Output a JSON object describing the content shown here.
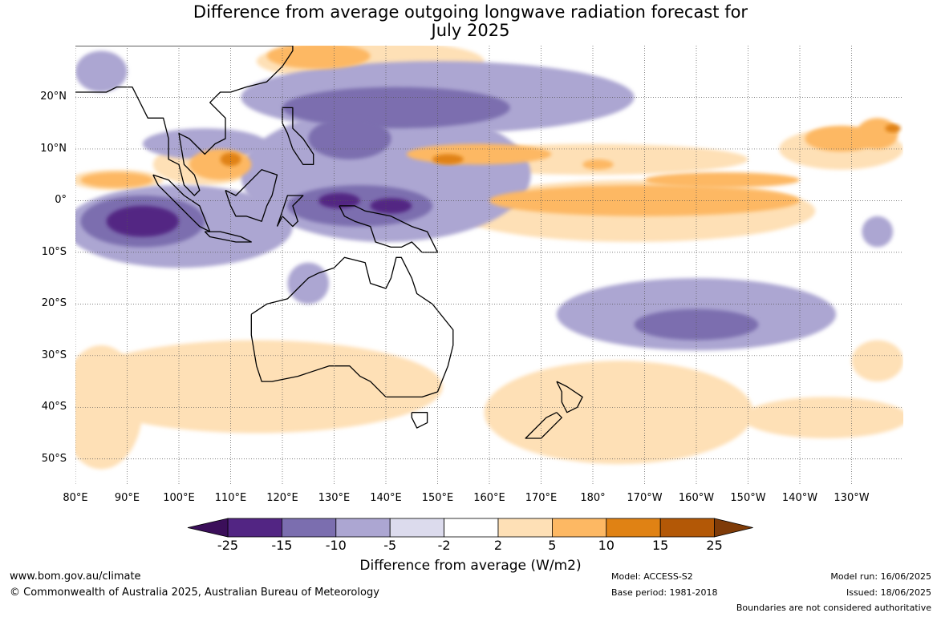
{
  "title_line1": "Difference from average outgoing longwave radiation forecast for",
  "title_line2": "July 2025",
  "lat_labels": [
    "20°N",
    "10°N",
    "0°",
    "10°S",
    "20°S",
    "30°S",
    "40°S",
    "50°S"
  ],
  "lon_labels": [
    "80°E",
    "90°E",
    "100°E",
    "110°E",
    "120°E",
    "130°E",
    "140°E",
    "150°E",
    "160°E",
    "170°E",
    "180°",
    "170°W",
    "160°W",
    "150°W",
    "140°W",
    "130°W"
  ],
  "colorbar": {
    "ticks": [
      "-25",
      "-15",
      "-10",
      "-5",
      "-2",
      "2",
      "5",
      "10",
      "15",
      "25"
    ],
    "colors": [
      "#3b0f5a",
      "#522583",
      "#7b6eaf",
      "#aca6d2",
      "#dcdbed",
      "#ffffff",
      "#fee0b6",
      "#fdb863",
      "#e08214",
      "#b35806",
      "#7f3b08"
    ],
    "label": "Difference from average (W/m2)"
  },
  "footer": {
    "url": "www.bom.gov.au/climate",
    "copyright": "© Commonwealth of Australia 2025, Australian Bureau of Meteorology",
    "model": "Model: ACCESS-S2",
    "base_period": "Base period: 1981-2018",
    "model_run": "Model run: 16/06/2025",
    "issued": "Issued: 18/06/2025",
    "boundaries": "Boundaries are not considered authoritative"
  },
  "map": {
    "lon_range": [
      80,
      240
    ],
    "lat_range": [
      -55,
      30
    ],
    "regions": [
      {
        "level": -15,
        "lon": 93,
        "lat": -4,
        "rx": 7,
        "ry": 3
      },
      {
        "level": -15,
        "lon": 131,
        "lat": 0,
        "rx": 4,
        "ry": 1.5
      },
      {
        "level": -15,
        "lon": 141,
        "lat": -1,
        "rx": 4,
        "ry": 1.5
      },
      {
        "level": -10,
        "lon": 93,
        "lat": -4,
        "rx": 12,
        "ry": 5
      },
      {
        "level": -10,
        "lon": 135,
        "lat": -1,
        "rx": 14,
        "ry": 4
      },
      {
        "level": -10,
        "lon": 142,
        "lat": 18,
        "rx": 22,
        "ry": 4
      },
      {
        "level": -10,
        "lon": 133,
        "lat": 12,
        "rx": 8,
        "ry": 4
      },
      {
        "level": -10,
        "lon": 200,
        "lat": -24,
        "rx": 12,
        "ry": 3
      },
      {
        "level": -5,
        "lon": 100,
        "lat": -5,
        "rx": 22,
        "ry": 8
      },
      {
        "level": -5,
        "lon": 140,
        "lat": 5,
        "rx": 28,
        "ry": 13
      },
      {
        "level": -5,
        "lon": 150,
        "lat": 20,
        "rx": 38,
        "ry": 7
      },
      {
        "level": -5,
        "lon": 105,
        "lat": 11,
        "rx": 12,
        "ry": 3
      },
      {
        "level": -5,
        "lon": 200,
        "lat": -22,
        "rx": 27,
        "ry": 7
      },
      {
        "level": -5,
        "lon": 85,
        "lat": 25,
        "rx": 5,
        "ry": 4
      },
      {
        "level": -5,
        "lon": 125,
        "lat": -16,
        "rx": 4,
        "ry": 4
      },
      {
        "level": -5,
        "lon": 235,
        "lat": -6,
        "rx": 3,
        "ry": 3
      },
      {
        "level": 2,
        "lon": 188,
        "lat": -2,
        "rx": 35,
        "ry": 6
      },
      {
        "level": 2,
        "lon": 180,
        "lat": 8,
        "rx": 30,
        "ry": 3
      },
      {
        "level": 2,
        "lon": 228,
        "lat": 10,
        "rx": 12,
        "ry": 4
      },
      {
        "level": 2,
        "lon": 105,
        "lat": 7,
        "rx": 10,
        "ry": 4
      },
      {
        "level": 2,
        "lon": 88,
        "lat": 4,
        "rx": 9,
        "ry": 2
      },
      {
        "level": 2,
        "lon": 137,
        "lat": 27,
        "rx": 22,
        "ry": 4
      },
      {
        "level": 2,
        "lon": 115,
        "lat": -36,
        "rx": 36,
        "ry": 9
      },
      {
        "level": 2,
        "lon": 185,
        "lat": -41,
        "rx": 26,
        "ry": 10
      },
      {
        "level": 2,
        "lon": 225,
        "lat": -42,
        "rx": 16,
        "ry": 4
      },
      {
        "level": 2,
        "lon": 235,
        "lat": -31,
        "rx": 5,
        "ry": 4
      },
      {
        "level": 2,
        "lon": 85,
        "lat": -40,
        "rx": 8,
        "ry": 12
      },
      {
        "level": 5,
        "lon": 190,
        "lat": 0,
        "rx": 30,
        "ry": 3
      },
      {
        "level": 5,
        "lon": 205,
        "lat": 4,
        "rx": 15,
        "ry": 1.5
      },
      {
        "level": 5,
        "lon": 158,
        "lat": 9,
        "rx": 14,
        "ry": 2
      },
      {
        "level": 5,
        "lon": 108,
        "lat": 7,
        "rx": 6,
        "ry": 3
      },
      {
        "level": 5,
        "lon": 88,
        "lat": 4,
        "rx": 7,
        "ry": 1.5
      },
      {
        "level": 5,
        "lon": 228,
        "lat": 12,
        "rx": 7,
        "ry": 2.5
      },
      {
        "level": 5,
        "lon": 235,
        "lat": 13,
        "rx": 4,
        "ry": 3
      },
      {
        "level": 5,
        "lon": 127,
        "lat": 28,
        "rx": 10,
        "ry": 2.5
      },
      {
        "level": 5,
        "lon": 181,
        "lat": 7,
        "rx": 3,
        "ry": 1
      },
      {
        "level": 10,
        "lon": 110,
        "lat": 8,
        "rx": 2,
        "ry": 1.3
      },
      {
        "level": 10,
        "lon": 152,
        "lat": 8,
        "rx": 3,
        "ry": 1
      },
      {
        "level": 10,
        "lon": 238,
        "lat": 14,
        "rx": 1.5,
        "ry": 0.8
      }
    ],
    "coastlines": [
      {
        "name": "australia",
        "points": [
          [
            114,
            -22
          ],
          [
            114,
            -26
          ],
          [
            115,
            -32
          ],
          [
            116,
            -35
          ],
          [
            118,
            -35
          ],
          [
            123,
            -34
          ],
          [
            129,
            -32
          ],
          [
            133,
            -32
          ],
          [
            135,
            -34
          ],
          [
            137,
            -35
          ],
          [
            140,
            -38
          ],
          [
            144,
            -38
          ],
          [
            147,
            -38
          ],
          [
            150,
            -37
          ],
          [
            152,
            -32
          ],
          [
            153,
            -28
          ],
          [
            153,
            -25
          ],
          [
            149,
            -20
          ],
          [
            146,
            -18
          ],
          [
            145,
            -15
          ],
          [
            143,
            -11
          ],
          [
            142,
            -11
          ],
          [
            141,
            -15
          ],
          [
            140,
            -17
          ],
          [
            137,
            -16
          ],
          [
            136,
            -12
          ],
          [
            132,
            -11
          ],
          [
            130,
            -13
          ],
          [
            127,
            -14
          ],
          [
            125,
            -15
          ],
          [
            123,
            -17
          ],
          [
            121,
            -19
          ],
          [
            117,
            -20
          ],
          [
            114,
            -22
          ]
        ]
      },
      {
        "name": "tasmania",
        "points": [
          [
            145,
            -41
          ],
          [
            148,
            -41
          ],
          [
            148,
            -43
          ],
          [
            146,
            -44
          ],
          [
            145,
            -42
          ],
          [
            145,
            -41
          ]
        ]
      },
      {
        "name": "new-guinea",
        "points": [
          [
            131,
            -1
          ],
          [
            134,
            -1
          ],
          [
            136,
            -2
          ],
          [
            141,
            -3
          ],
          [
            145,
            -5
          ],
          [
            148,
            -6
          ],
          [
            150,
            -10
          ],
          [
            147,
            -10
          ],
          [
            145,
            -8
          ],
          [
            143,
            -9
          ],
          [
            141,
            -9
          ],
          [
            138,
            -8
          ],
          [
            137,
            -5
          ],
          [
            134,
            -4
          ],
          [
            132,
            -3
          ],
          [
            131,
            -1
          ]
        ]
      },
      {
        "name": "borneo",
        "points": [
          [
            109,
            2
          ],
          [
            111,
            1
          ],
          [
            113,
            3
          ],
          [
            116,
            6
          ],
          [
            119,
            5
          ],
          [
            118,
            1
          ],
          [
            117,
            -1
          ],
          [
            116,
            -4
          ],
          [
            113,
            -3
          ],
          [
            111,
            -3
          ],
          [
            110,
            -1
          ],
          [
            109,
            2
          ]
        ]
      },
      {
        "name": "sumatra",
        "points": [
          [
            95,
            5
          ],
          [
            98,
            4
          ],
          [
            101,
            1
          ],
          [
            104,
            -1
          ],
          [
            106,
            -6
          ],
          [
            104,
            -5
          ],
          [
            102,
            -3
          ],
          [
            99,
            0
          ],
          [
            96,
            3
          ],
          [
            95,
            5
          ]
        ]
      },
      {
        "name": "java",
        "points": [
          [
            105,
            -6
          ],
          [
            108,
            -6
          ],
          [
            112,
            -7
          ],
          [
            114,
            -8
          ],
          [
            111,
            -8
          ],
          [
            106,
            -7
          ],
          [
            105,
            -6
          ]
        ]
      },
      {
        "name": "sulawesi",
        "points": [
          [
            119,
            -5
          ],
          [
            120,
            -2
          ],
          [
            121,
            1
          ],
          [
            124,
            1
          ],
          [
            122,
            -1
          ],
          [
            123,
            -4
          ],
          [
            122,
            -5
          ],
          [
            120,
            -3
          ],
          [
            119,
            -5
          ]
        ]
      },
      {
        "name": "philippines",
        "points": [
          [
            120,
            18
          ],
          [
            122,
            18
          ],
          [
            122,
            14
          ],
          [
            124,
            12
          ],
          [
            126,
            9
          ],
          [
            126,
            7
          ],
          [
            124,
            7
          ],
          [
            122,
            10
          ],
          [
            121,
            13
          ],
          [
            120,
            15
          ],
          [
            120,
            18
          ]
        ]
      },
      {
        "name": "asia",
        "points": [
          [
            80,
            21
          ],
          [
            86,
            21
          ],
          [
            88,
            22
          ],
          [
            91,
            22
          ],
          [
            92,
            20
          ],
          [
            94,
            16
          ],
          [
            97,
            16
          ],
          [
            98,
            12
          ],
          [
            98,
            8
          ],
          [
            100,
            7
          ],
          [
            101,
            3
          ],
          [
            103,
            1
          ],
          [
            104,
            2
          ],
          [
            103,
            5
          ],
          [
            101,
            7
          ],
          [
            100,
            13
          ],
          [
            102,
            12
          ],
          [
            105,
            9
          ],
          [
            107,
            11
          ],
          [
            109,
            12
          ],
          [
            109,
            16
          ],
          [
            106,
            19
          ],
          [
            108,
            21
          ],
          [
            110,
            21
          ],
          [
            113,
            22
          ],
          [
            117,
            23
          ],
          [
            120,
            26
          ],
          [
            122,
            29
          ],
          [
            122,
            30
          ],
          [
            80,
            30
          ]
        ]
      },
      {
        "name": "new-zealand-north",
        "points": [
          [
            173,
            -35
          ],
          [
            175,
            -36
          ],
          [
            178,
            -38
          ],
          [
            177,
            -40
          ],
          [
            175,
            -41
          ],
          [
            174,
            -39
          ],
          [
            174,
            -37
          ],
          [
            173,
            -35
          ]
        ]
      },
      {
        "name": "new-zealand-south",
        "points": [
          [
            173,
            -41
          ],
          [
            174,
            -42
          ],
          [
            172,
            -44
          ],
          [
            170,
            -46
          ],
          [
            167,
            -46
          ],
          [
            168,
            -45
          ],
          [
            171,
            -42
          ],
          [
            173,
            -41
          ]
        ]
      }
    ]
  }
}
